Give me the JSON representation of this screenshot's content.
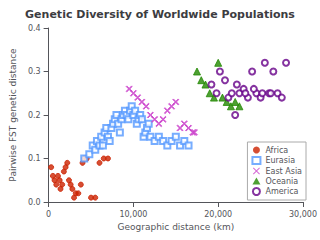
{
  "chart_data": {
    "type": "scatter",
    "title": "Genetic Diversity of Worldwide Populations",
    "xlabel": "Geographic distance (km)",
    "ylabel": "Pairwise FST genetic distance",
    "xlim": [
      0,
      30000
    ],
    "ylim": [
      0,
      0.4
    ],
    "xticks": [
      0,
      {
        "value": 10000,
        "label": "10,000"
      },
      {
        "value": 20000,
        "label": "20,000"
      },
      {
        "value": 30000,
        "label": "30,000"
      }
    ],
    "yticks": [
      {
        "value": 0,
        "label": "0.0"
      },
      0.1,
      0.2,
      0.3,
      0.4
    ],
    "grid": false,
    "legend": "lower right",
    "series": [
      {
        "name": "Africa",
        "color": "#cc2200",
        "marker": "circle",
        "x": [
          300,
          500,
          700,
          900,
          1100,
          1300,
          1400,
          1600,
          1800,
          2000,
          2200,
          2400,
          2600,
          2800,
          3000,
          3200,
          3500,
          3800,
          4000,
          4200,
          4500,
          5000,
          5500,
          6000,
          6500,
          7000
        ],
        "values": [
          0.08,
          0.06,
          0.05,
          0.04,
          0.06,
          0.05,
          0.03,
          0.04,
          0.07,
          0.08,
          0.09,
          0.05,
          0.04,
          0.03,
          0.01,
          0.02,
          0.02,
          0.04,
          0.09,
          0.1,
          0.1,
          0.01,
          0.01,
          0.09,
          0.1,
          0.1
        ]
      },
      {
        "name": "Eurasia",
        "color": "#5599ff",
        "marker": "open_square",
        "x": [
          4200,
          4800,
          5200,
          5500,
          5700,
          6000,
          6200,
          6400,
          6600,
          6800,
          7000,
          7200,
          7400,
          7600,
          7800,
          8000,
          8200,
          8400,
          8600,
          8800,
          9000,
          9200,
          9400,
          9600,
          9800,
          10000,
          10200,
          10400,
          10600,
          10800,
          11000,
          11200,
          11400,
          11600,
          11800,
          12000,
          12500,
          13000,
          13500,
          14000,
          14500,
          15000,
          15500,
          16000,
          16500
        ],
        "values": [
          0.1,
          0.11,
          0.13,
          0.12,
          0.14,
          0.13,
          0.15,
          0.13,
          0.16,
          0.17,
          0.15,
          0.14,
          0.17,
          0.18,
          0.19,
          0.2,
          0.18,
          0.16,
          0.19,
          0.2,
          0.21,
          0.2,
          0.19,
          0.21,
          0.22,
          0.2,
          0.21,
          0.18,
          0.19,
          0.2,
          0.19,
          0.15,
          0.16,
          0.17,
          0.18,
          0.15,
          0.14,
          0.15,
          0.14,
          0.13,
          0.14,
          0.15,
          0.13,
          0.14,
          0.13
        ]
      },
      {
        "name": "East Asia",
        "color": "#cc44cc",
        "marker": "x",
        "x": [
          9500,
          10000,
          10500,
          11000,
          11500,
          12000,
          12500,
          13000,
          13500,
          14000,
          14500,
          15000,
          15500,
          16000,
          16500,
          17000,
          17200
        ],
        "values": [
          0.26,
          0.25,
          0.24,
          0.23,
          0.22,
          0.2,
          0.19,
          0.18,
          0.19,
          0.21,
          0.22,
          0.23,
          0.17,
          0.18,
          0.17,
          0.16,
          0.16
        ]
      },
      {
        "name": "Oceania",
        "color": "#228800",
        "marker": "triangle",
        "x": [
          17500,
          18000,
          18500,
          19000,
          19500,
          20000,
          20500,
          21000,
          21500,
          22000,
          22500
        ],
        "values": [
          0.3,
          0.28,
          0.27,
          0.25,
          0.24,
          0.32,
          0.24,
          0.23,
          0.22,
          0.23,
          0.22
        ]
      },
      {
        "name": "America",
        "color": "#660088",
        "marker": "open_circle",
        "x": [
          19200,
          19800,
          20200,
          20800,
          21200,
          21600,
          22000,
          22500,
          23000,
          23500,
          24000,
          24500,
          25000,
          25500,
          26000,
          26500,
          27000,
          27500,
          28000,
          22200,
          23200,
          24200,
          25200,
          26200
        ],
        "values": [
          0.27,
          0.25,
          0.3,
          0.28,
          0.24,
          0.25,
          0.2,
          0.25,
          0.26,
          0.24,
          0.3,
          0.25,
          0.24,
          0.32,
          0.25,
          0.3,
          0.25,
          0.24,
          0.32,
          0.27,
          0.25,
          0.26,
          0.25,
          0.25
        ]
      }
    ]
  }
}
